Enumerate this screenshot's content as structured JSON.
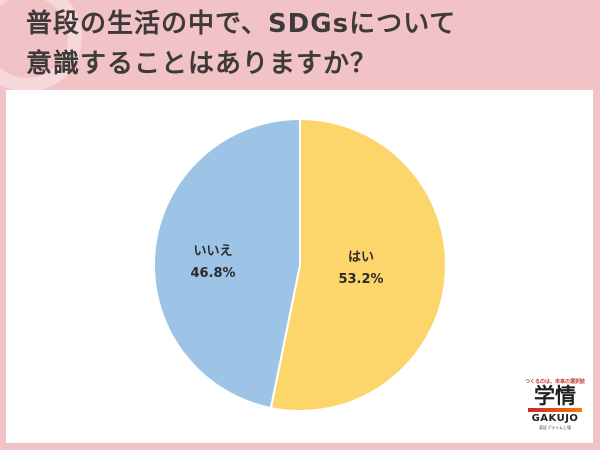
{
  "header": {
    "title_line1": "普段の生活の中で、SDGsについて",
    "title_line2": "意識することはありますか？"
  },
  "colors": {
    "background": "#f2c3c6",
    "panel": "#ffffff",
    "yes": "#fcd56b",
    "no": "#9dc3e6",
    "title_text": "#3f3a3a"
  },
  "chart_data": {
    "type": "pie",
    "title": "普段の生活の中で、SDGsについて意識することはありますか？",
    "categories": [
      "はい",
      "いいえ"
    ],
    "values": [
      53.2,
      46.8
    ],
    "labels": [
      "53.2%",
      "46.8%"
    ],
    "colors": [
      "#fcd56b",
      "#9dc3e6"
    ],
    "start_angle": "12 o'clock, clockwise",
    "legend": "none (inline labels)"
  },
  "slices": [
    {
      "name": "はい",
      "value_label": "53.2%"
    },
    {
      "name": "いいえ",
      "value_label": "46.8%"
    }
  ],
  "logo": {
    "tagline": "つくるのは、未来の選択肢",
    "kanji": "学情",
    "english": "GAKUJO",
    "sub": "東証プライム上場"
  }
}
